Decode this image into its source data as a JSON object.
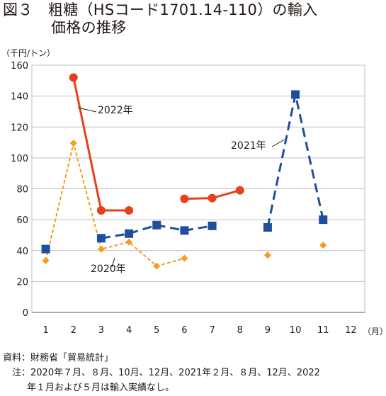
{
  "title": {
    "line1": "図３　粗糖（HSコード1701.14-110）の輸入",
    "line2": "価格の推移"
  },
  "footer": {
    "source": "資料：財務省「貿易統計」",
    "note": "　注：2020年７月、８月、10月、12月、2021年２月、８月、12月、2022",
    "note_cont": "年１月および５月は輸入実績なし。"
  },
  "chart_data": {
    "type": "line",
    "x": [
      1,
      2,
      3,
      4,
      5,
      6,
      7,
      8,
      9,
      10,
      11,
      12
    ],
    "x_unit": "（月）",
    "y_unit": "（千円/トン）",
    "ylim": [
      0,
      160
    ],
    "yticks": [
      0,
      20,
      40,
      60,
      80,
      100,
      120,
      140,
      160
    ],
    "grid": true,
    "series": [
      {
        "name": "2022年",
        "color": "#e8401c",
        "marker": "circle",
        "style": "solid",
        "values": [
          null,
          152,
          66,
          66,
          null,
          73.5,
          74,
          79,
          null,
          null,
          null,
          null
        ]
      },
      {
        "name": "2021年",
        "color": "#1f4e9e",
        "marker": "square",
        "style": "dashed",
        "values": [
          41,
          null,
          48,
          51,
          56.5,
          53,
          56,
          null,
          55,
          141,
          60,
          null
        ]
      },
      {
        "name": "2020年",
        "color": "#f39c1f",
        "marker": "diamond",
        "style": "dotted",
        "values": [
          33.5,
          109.5,
          41,
          45.5,
          30,
          35,
          null,
          null,
          37,
          null,
          43.5,
          null
        ]
      }
    ]
  }
}
